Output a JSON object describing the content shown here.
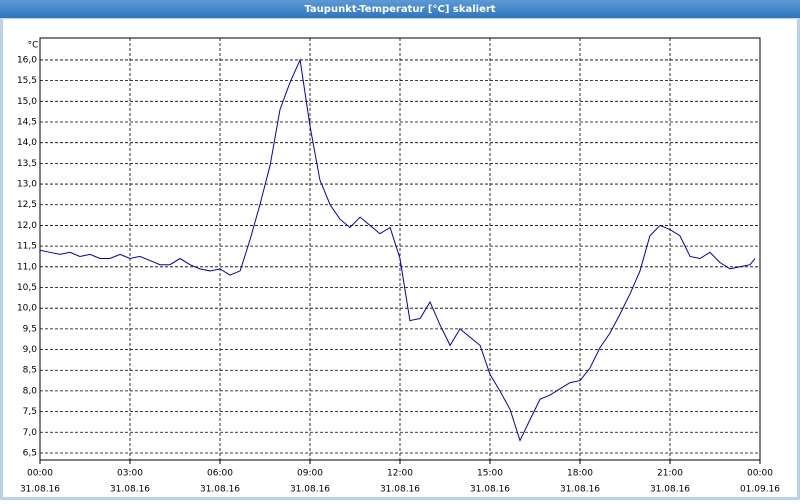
{
  "chart_data": {
    "type": "line",
    "title": "Taupunkt-Temperatur [°C] skaliert",
    "y_unit": "°C",
    "x": [
      0,
      0.33,
      0.67,
      1,
      1.33,
      1.67,
      2,
      2.33,
      2.67,
      3,
      3.33,
      3.67,
      4,
      4.33,
      4.67,
      5,
      5.33,
      5.67,
      6,
      6.33,
      6.67,
      7,
      7.33,
      7.67,
      8,
      8.33,
      8.67,
      9,
      9.33,
      9.67,
      10,
      10.33,
      10.67,
      11,
      11.33,
      11.67,
      12,
      12.33,
      12.67,
      13,
      13.33,
      13.67,
      14,
      14.33,
      14.67,
      15,
      15.33,
      15.67,
      16,
      16.33,
      16.67,
      17,
      17.33,
      17.67,
      18,
      18.33,
      18.67,
      19,
      19.33,
      19.67,
      20,
      20.33,
      20.67,
      21,
      21.33,
      21.67,
      22,
      22.33,
      22.67,
      23,
      23.33,
      23.67,
      23.83
    ],
    "series": [
      {
        "name": "Taupunkt",
        "color": "#0000c0",
        "values": [
          11.4,
          11.35,
          11.3,
          11.35,
          11.25,
          11.3,
          11.2,
          11.2,
          11.3,
          11.2,
          11.25,
          11.15,
          11.05,
          11.05,
          11.2,
          11.05,
          10.95,
          10.9,
          10.95,
          10.8,
          10.9,
          11.65,
          12.5,
          13.45,
          14.8,
          15.45,
          16.0,
          14.4,
          13.1,
          12.5,
          12.15,
          11.95,
          12.2,
          12.0,
          11.8,
          11.95,
          11.2,
          9.7,
          9.75,
          10.15,
          9.6,
          9.1,
          9.5,
          9.3,
          9.1,
          8.4,
          8.0,
          7.55,
          6.8,
          7.3,
          7.8,
          7.9,
          8.05,
          8.2,
          8.25,
          8.55,
          9.05,
          9.4,
          9.85,
          10.35,
          10.9,
          11.75,
          12.0,
          11.9,
          11.75,
          11.25,
          11.2,
          11.35,
          11.1,
          10.95,
          11.0,
          11.05,
          11.2
        ]
      }
    ],
    "xlim": [
      0,
      24
    ],
    "xticks": [
      {
        "value": 0,
        "label": "00:00",
        "date": "31.08.16"
      },
      {
        "value": 3,
        "label": "03:00",
        "date": "31.08.16"
      },
      {
        "value": 6,
        "label": "06:00",
        "date": "31.08.16"
      },
      {
        "value": 9,
        "label": "09:00",
        "date": "31.08.16"
      },
      {
        "value": 12,
        "label": "12:00",
        "date": "31.08.16"
      },
      {
        "value": 15,
        "label": "15:00",
        "date": "31.08.16"
      },
      {
        "value": 18,
        "label": "18:00",
        "date": "31.08.16"
      },
      {
        "value": 21,
        "label": "21:00",
        "date": "31.08.16"
      },
      {
        "value": 24,
        "label": "00:00",
        "date": "01.09.16"
      }
    ],
    "ylim": [
      6.33,
      16.53
    ],
    "yticks": [
      {
        "value": 6.5,
        "label": "6,5"
      },
      {
        "value": 7,
        "label": "7,0"
      },
      {
        "value": 7.5,
        "label": "7,5"
      },
      {
        "value": 8,
        "label": "8,0"
      },
      {
        "value": 8.5,
        "label": "8,5"
      },
      {
        "value": 9,
        "label": "9,0"
      },
      {
        "value": 9.5,
        "label": "9,5"
      },
      {
        "value": 10,
        "label": "10,0"
      },
      {
        "value": 10.5,
        "label": "10,5"
      },
      {
        "value": 11,
        "label": "11,0"
      },
      {
        "value": 11.5,
        "label": "11,5"
      },
      {
        "value": 12,
        "label": "12,0"
      },
      {
        "value": 12.5,
        "label": "12,5"
      },
      {
        "value": 13,
        "label": "13,0"
      },
      {
        "value": 13.5,
        "label": "13,5"
      },
      {
        "value": 14,
        "label": "14,0"
      },
      {
        "value": 14.5,
        "label": "14,5"
      },
      {
        "value": 15,
        "label": "15,0"
      },
      {
        "value": 15.5,
        "label": "15,5"
      },
      {
        "value": 16,
        "label": "16,0"
      }
    ],
    "grid": true
  }
}
